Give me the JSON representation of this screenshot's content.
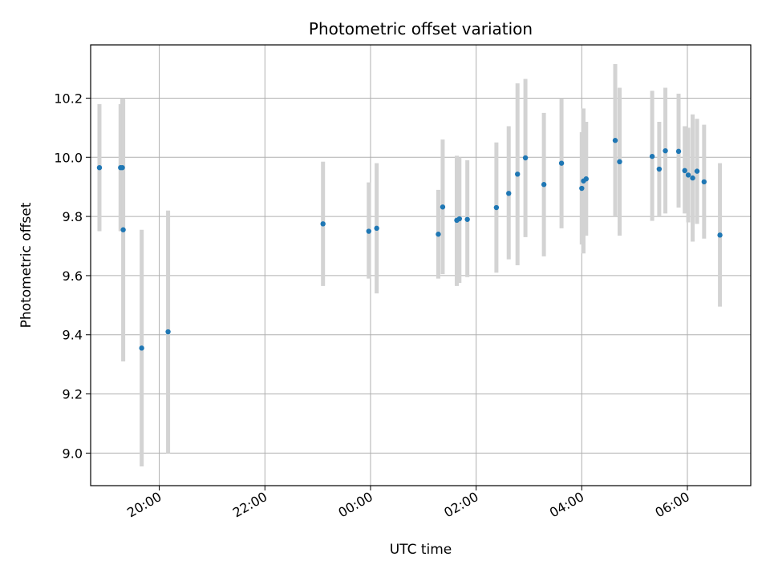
{
  "chart_data": {
    "type": "scatter",
    "title": "Photometric offset variation",
    "xlabel": "UTC time",
    "ylabel": "Photometric offset",
    "x_axis": "time",
    "x_range": [
      "18:42",
      "07:12"
    ],
    "ylim": [
      8.89,
      10.38
    ],
    "yticks": [
      9.0,
      9.2,
      9.4,
      9.6,
      9.8,
      10.0,
      10.2
    ],
    "ytick_labels": [
      "9.0",
      "9.2",
      "9.4",
      "9.6",
      "9.8",
      "10.0",
      "10.2"
    ],
    "xticks": [
      "20:00",
      "22:00",
      "00:00",
      "02:00",
      "04:00",
      "06:00"
    ],
    "xtick_labels": [
      "20:00",
      "22:00",
      "00:00",
      "02:00",
      "04:00",
      "06:00"
    ],
    "grid": true,
    "colors": {
      "point": "#1f77b4",
      "errorbar": "#d3d3d3",
      "grid": "#b0b0b0"
    },
    "points": [
      {
        "x": "18:52",
        "y": 9.965,
        "low": 9.75,
        "high": 10.18
      },
      {
        "x": "19:16",
        "y": 9.965,
        "low": 9.75,
        "high": 10.18
      },
      {
        "x": "19:18",
        "y": 9.965,
        "low": 9.75,
        "high": 10.2
      },
      {
        "x": "19:19",
        "y": 9.755,
        "low": 9.31,
        "high": 10.2
      },
      {
        "x": "19:40",
        "y": 9.355,
        "low": 8.955,
        "high": 9.755
      },
      {
        "x": "20:10",
        "y": 9.41,
        "low": 9.0,
        "high": 9.82
      },
      {
        "x": "23:06",
        "y": 9.775,
        "low": 9.565,
        "high": 9.985
      },
      {
        "x": "23:58",
        "y": 9.75,
        "low": 9.59,
        "high": 9.915
      },
      {
        "x": "00:07",
        "y": 9.76,
        "low": 9.54,
        "high": 9.98
      },
      {
        "x": "01:17",
        "y": 9.74,
        "low": 9.59,
        "high": 9.89
      },
      {
        "x": "01:22",
        "y": 9.832,
        "low": 9.605,
        "high": 10.06
      },
      {
        "x": "01:38",
        "y": 9.787,
        "low": 9.565,
        "high": 10.005
      },
      {
        "x": "01:41",
        "y": 9.792,
        "low": 9.575,
        "high": 10.0
      },
      {
        "x": "01:50",
        "y": 9.79,
        "low": 9.595,
        "high": 9.99
      },
      {
        "x": "02:23",
        "y": 9.83,
        "low": 9.61,
        "high": 10.05
      },
      {
        "x": "02:37",
        "y": 9.878,
        "low": 9.655,
        "high": 10.105
      },
      {
        "x": "02:47",
        "y": 9.943,
        "low": 9.635,
        "high": 10.25
      },
      {
        "x": "02:56",
        "y": 9.998,
        "low": 9.73,
        "high": 10.265
      },
      {
        "x": "03:17",
        "y": 9.908,
        "low": 9.665,
        "high": 10.15
      },
      {
        "x": "03:37",
        "y": 9.98,
        "low": 9.76,
        "high": 10.2
      },
      {
        "x": "04:00",
        "y": 9.895,
        "low": 9.705,
        "high": 10.085
      },
      {
        "x": "04:02",
        "y": 9.92,
        "low": 9.675,
        "high": 10.165
      },
      {
        "x": "04:05",
        "y": 9.927,
        "low": 9.735,
        "high": 10.12
      },
      {
        "x": "04:38",
        "y": 10.057,
        "low": 9.8,
        "high": 10.315
      },
      {
        "x": "04:43",
        "y": 9.985,
        "low": 9.735,
        "high": 10.235
      },
      {
        "x": "05:20",
        "y": 10.003,
        "low": 9.785,
        "high": 10.225
      },
      {
        "x": "05:28",
        "y": 9.96,
        "low": 9.8,
        "high": 10.12
      },
      {
        "x": "05:35",
        "y": 10.022,
        "low": 9.81,
        "high": 10.235
      },
      {
        "x": "05:50",
        "y": 10.02,
        "low": 9.83,
        "high": 10.215
      },
      {
        "x": "05:57",
        "y": 9.955,
        "low": 9.81,
        "high": 10.105
      },
      {
        "x": "06:01",
        "y": 9.94,
        "low": 9.78,
        "high": 10.1
      },
      {
        "x": "06:06",
        "y": 9.93,
        "low": 9.715,
        "high": 10.145
      },
      {
        "x": "06:11",
        "y": 9.953,
        "low": 9.775,
        "high": 10.13
      },
      {
        "x": "06:19",
        "y": 9.917,
        "low": 9.725,
        "high": 10.11
      },
      {
        "x": "06:37",
        "y": 9.737,
        "low": 9.495,
        "high": 9.98
      }
    ]
  }
}
